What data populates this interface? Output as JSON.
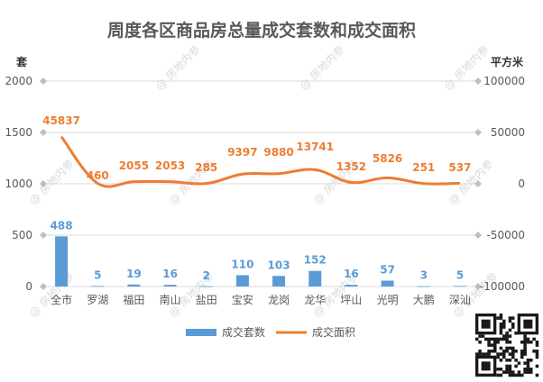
{
  "chart_data": {
    "type": "bar",
    "title": "周度各区商品房总量成交套数和成交面积",
    "categories": [
      "全市",
      "罗湖",
      "福田",
      "南山",
      "盐田",
      "宝安",
      "龙岗",
      "龙华",
      "坪山",
      "光明",
      "大鹏",
      "深汕"
    ],
    "series": [
      {
        "name": "成交套数",
        "type": "bar",
        "axis": "left",
        "values": [
          488,
          5,
          19,
          16,
          2,
          110,
          103,
          152,
          16,
          57,
          3,
          5
        ],
        "color": "#5b9bd5"
      },
      {
        "name": "成交面积",
        "type": "line",
        "axis": "right",
        "values": [
          45837,
          460,
          2055,
          2053,
          285,
          9397,
          9880,
          13741,
          1352,
          5826,
          251,
          537
        ],
        "color": "#ed7d31"
      }
    ],
    "left_axis": {
      "unit": "套",
      "ylim": [
        0,
        2000
      ],
      "ticks": [
        0,
        500,
        1000,
        1500,
        2000
      ]
    },
    "right_axis": {
      "unit": "平方米",
      "ylim": [
        -100000,
        100000
      ],
      "ticks": [
        -100000,
        -50000,
        0,
        50000,
        100000
      ]
    },
    "legend_position": "bottom",
    "grid": true
  },
  "watermark": "房地内参"
}
